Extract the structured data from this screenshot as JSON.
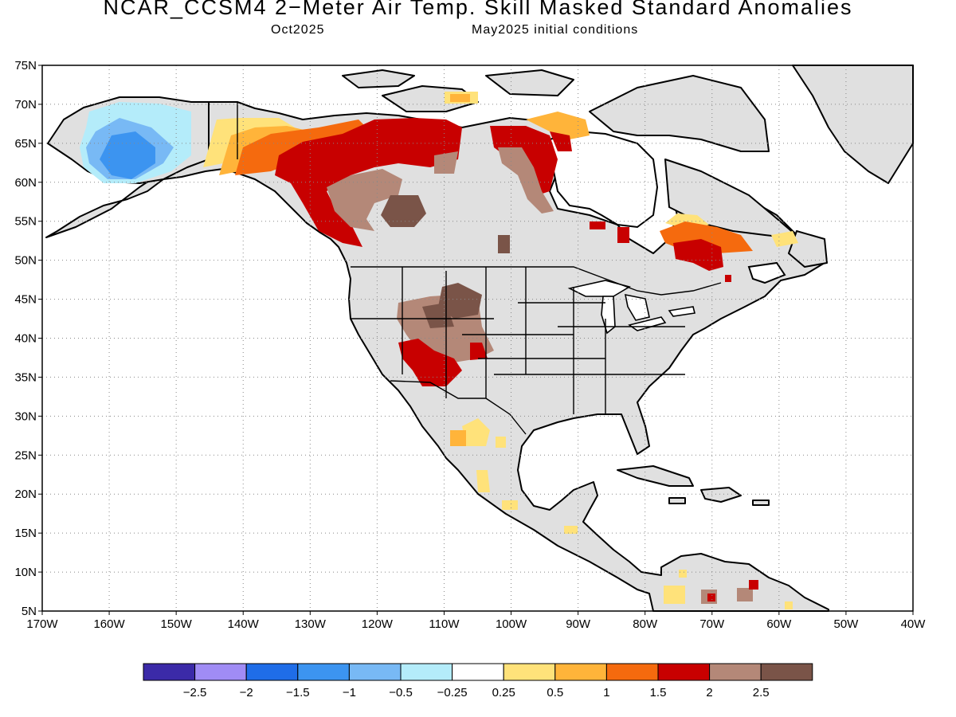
{
  "header": {
    "title": "NCAR_CCSM4 2−Meter Air Temp. Skill Masked Standard Anomalies",
    "target_month": "Oct2025",
    "initial_conditions": "May2025 initial conditions"
  },
  "map": {
    "extent": {
      "lon_min": -170,
      "lon_max": -40,
      "lat_min": 5,
      "lat_max": 75
    },
    "lat_labels": [
      "75N",
      "70N",
      "65N",
      "60N",
      "55N",
      "50N",
      "45N",
      "40N",
      "35N",
      "30N",
      "25N",
      "20N",
      "15N",
      "10N",
      "5N"
    ],
    "lon_labels": [
      "170W",
      "160W",
      "150W",
      "140W",
      "130W",
      "120W",
      "110W",
      "100W",
      "90W",
      "80W",
      "70W",
      "60W",
      "50W",
      "40W"
    ],
    "gridlines": "dotted",
    "colors": {
      "ocean": "#ffffff",
      "land_masked": "#e0e0e0",
      "coast": "#000000"
    }
  },
  "colorbar": {
    "colors": [
      "#3b2aa8",
      "#a08cf5",
      "#1f6de8",
      "#3c94f0",
      "#78b9f5",
      "#b4ecfa",
      "#ffffff",
      "#ffe27a",
      "#ffb43a",
      "#f56a0e",
      "#c80000",
      "#b48878",
      "#7a5448"
    ],
    "labels": [
      "−2.5",
      "−2",
      "−1.5",
      "−1",
      "−0.5",
      "−0.25",
      "0.25",
      "0.5",
      "1",
      "1.5",
      "2",
      "2.5"
    ]
  }
}
